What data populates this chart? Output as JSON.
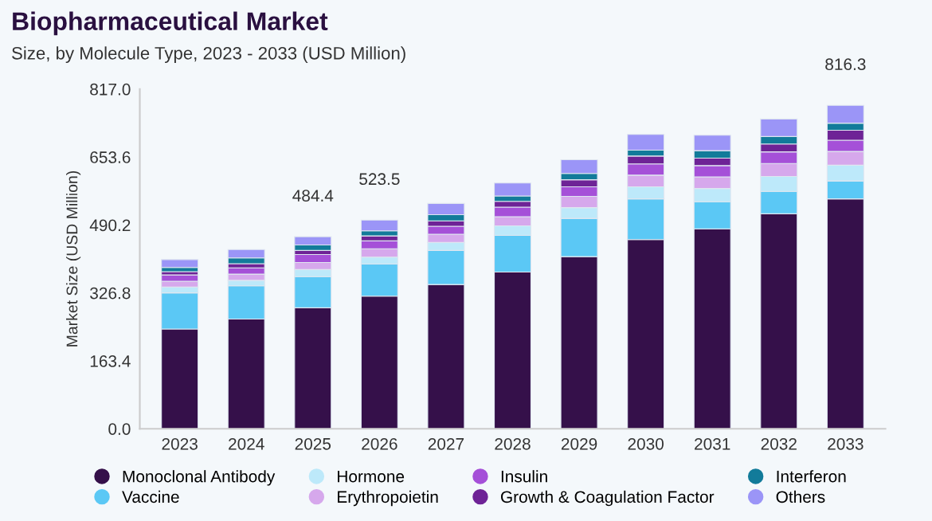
{
  "chart_data": {
    "type": "bar",
    "title": "Biopharmaceutical Market",
    "subtitle": "Size, by Molecule Type, 2023 - 2033 (USD Million)",
    "ylabel": "Market Size (USD Million)",
    "categories": [
      "2023",
      "2024",
      "2025",
      "2026",
      "2027",
      "2028",
      "2029",
      "2030",
      "2031",
      "2032",
      "2033"
    ],
    "stacked": true,
    "ylim": [
      0,
      817
    ],
    "yticks": [
      {
        "value": 0,
        "label": "0.0"
      },
      163.4,
      326.8,
      490.2,
      653.6,
      {
        "value": 817,
        "label": "817.0"
      }
    ],
    "grid": false,
    "legend": "bottom",
    "series": [
      {
        "name": "Monoclonal Antibody",
        "color": "#35104a",
        "values": [
          240,
          264,
          291,
          319,
          347,
          377,
          414,
          455,
          481,
          517,
          553
        ]
      },
      {
        "name": "Vaccine",
        "color": "#5bc8f5",
        "values": [
          87,
          80,
          75,
          77,
          82,
          88,
          92,
          98,
          65,
          54,
          43
        ]
      },
      {
        "name": "Hormone",
        "color": "#bde9fa",
        "values": [
          14,
          13,
          17,
          17,
          19,
          23,
          26,
          29,
          32,
          36,
          38
        ]
      },
      {
        "name": "Erythropoietin",
        "color": "#d6a8ec",
        "values": [
          14,
          15,
          17,
          20,
          20,
          22,
          27,
          28,
          28,
          31,
          33
        ]
      },
      {
        "name": "Insulin",
        "color": "#a550d8",
        "values": [
          15,
          15,
          19,
          19,
          19,
          23,
          23,
          27,
          27,
          28,
          27
        ]
      },
      {
        "name": "Growth & Coagulation Factor",
        "color": "#6e2396",
        "values": [
          8,
          10,
          10,
          12,
          13,
          14,
          17,
          19,
          18,
          19,
          24
        ]
      },
      {
        "name": "Interferon",
        "color": "#127b9a",
        "values": [
          10,
          14,
          13,
          12,
          15,
          13,
          15,
          14,
          18,
          18,
          17
        ]
      },
      {
        "name": "Others",
        "color": "#9b95f7",
        "values": [
          19,
          20,
          20,
          26,
          27,
          31,
          33,
          38,
          37,
          42,
          43
        ]
      }
    ],
    "annotations": [
      "484.4",
      "523.5",
      "816.3"
    ]
  }
}
